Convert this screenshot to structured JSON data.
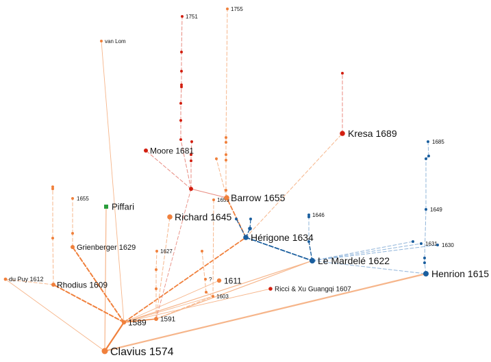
{
  "colors": {
    "orange": "#f0803c",
    "orange_light": "#f6b58a",
    "red": "#d21f10",
    "red_light": "#e88a7f",
    "blue": "#1a5e9e",
    "blue_light": "#8fb4da",
    "green": "#2a9d3c"
  },
  "nodes": [
    {
      "id": "clavius",
      "label": "Clavius 1574",
      "group": "orange"
    },
    {
      "id": "n1589",
      "label": "1589",
      "group": "orange"
    },
    {
      "id": "n1591",
      "label": "1591",
      "group": "orange"
    },
    {
      "id": "rhodius",
      "label": "Rhodius 1609",
      "group": "orange"
    },
    {
      "id": "dupuy",
      "label": "du Puy 1612",
      "group": "orange"
    },
    {
      "id": "grienberger",
      "label": "Grienberger 1629",
      "group": "orange"
    },
    {
      "id": "n1655a",
      "label": "1655",
      "group": "orange"
    },
    {
      "id": "vanlom",
      "label": "van Lom",
      "group": "orange"
    },
    {
      "id": "n1627",
      "label": "1627",
      "group": "orange"
    },
    {
      "id": "richard",
      "label": "Richard 1645",
      "group": "orange"
    },
    {
      "id": "n1659",
      "label": "1659",
      "group": "orange"
    },
    {
      "id": "barrow",
      "label": "Barrow 1655",
      "group": "orange"
    },
    {
      "id": "n1755",
      "label": "1755",
      "group": "orange"
    },
    {
      "id": "n1611",
      "label": "1611",
      "group": "orange"
    },
    {
      "id": "n1603",
      "label": "1603",
      "group": "orange"
    },
    {
      "id": "q",
      "label": "?",
      "group": "orange"
    },
    {
      "id": "herigone",
      "label": "Hérigone 1634",
      "group": "blue"
    },
    {
      "id": "lemardele",
      "label": "Le Mardelé 1622",
      "group": "blue"
    },
    {
      "id": "henrion",
      "label": "Henrion 1615",
      "group": "blue"
    },
    {
      "id": "n1646",
      "label": "1646",
      "group": "blue"
    },
    {
      "id": "n1685",
      "label": "1685",
      "group": "blue"
    },
    {
      "id": "n1649",
      "label": "1649",
      "group": "blue"
    },
    {
      "id": "n1631",
      "label": "1631",
      "group": "blue"
    },
    {
      "id": "n1630",
      "label": "1630",
      "group": "blue"
    },
    {
      "id": "kresa",
      "label": "Kresa 1689",
      "group": "red"
    },
    {
      "id": "moore",
      "label": "Moore 1681",
      "group": "red"
    },
    {
      "id": "n1751",
      "label": "1751",
      "group": "red"
    },
    {
      "id": "ricci",
      "label": "Ricci & Xu Guangqi 1607",
      "group": "red"
    },
    {
      "id": "piffari",
      "label": "Piffari",
      "group": "green"
    }
  ]
}
